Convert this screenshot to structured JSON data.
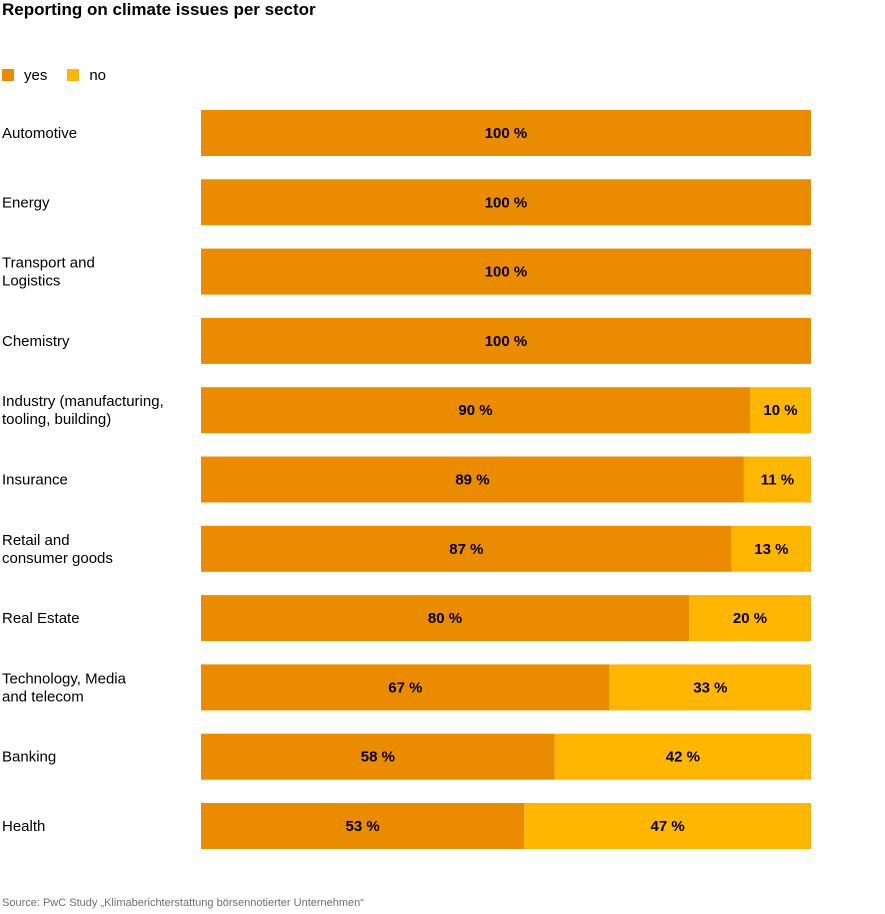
{
  "chart_data": {
    "type": "bar",
    "orientation": "horizontal",
    "stacked": true,
    "title": "Reporting on climate issues per sector",
    "categories": [
      [
        "Automotive"
      ],
      [
        "Energy"
      ],
      [
        "Transport and",
        "Logistics"
      ],
      [
        "Chemistry"
      ],
      [
        "Industry (manufacturing,",
        "tooling, building)"
      ],
      [
        "Insurance"
      ],
      [
        "Retail and",
        "consumer goods"
      ],
      [
        "Real Estate"
      ],
      [
        "Technology, Media",
        "and telecom"
      ],
      [
        "Banking"
      ],
      [
        "Health"
      ]
    ],
    "series": [
      {
        "name": "yes",
        "color": "#EB8C00",
        "values": [
          100,
          100,
          100,
          100,
          90,
          89,
          87,
          80,
          67,
          58,
          53
        ]
      },
      {
        "name": "no",
        "color": "#FFB600",
        "values": [
          0,
          0,
          0,
          0,
          10,
          11,
          13,
          20,
          33,
          42,
          47
        ]
      }
    ],
    "value_suffix": " %",
    "xlim": [
      0,
      100
    ],
    "legend_position": "top-left",
    "grid": false
  },
  "legend": {
    "yes": "yes",
    "no": "no"
  },
  "source": "Source: PwC Study „Klimaberichterstattung börsennotierter Unternehmen“"
}
